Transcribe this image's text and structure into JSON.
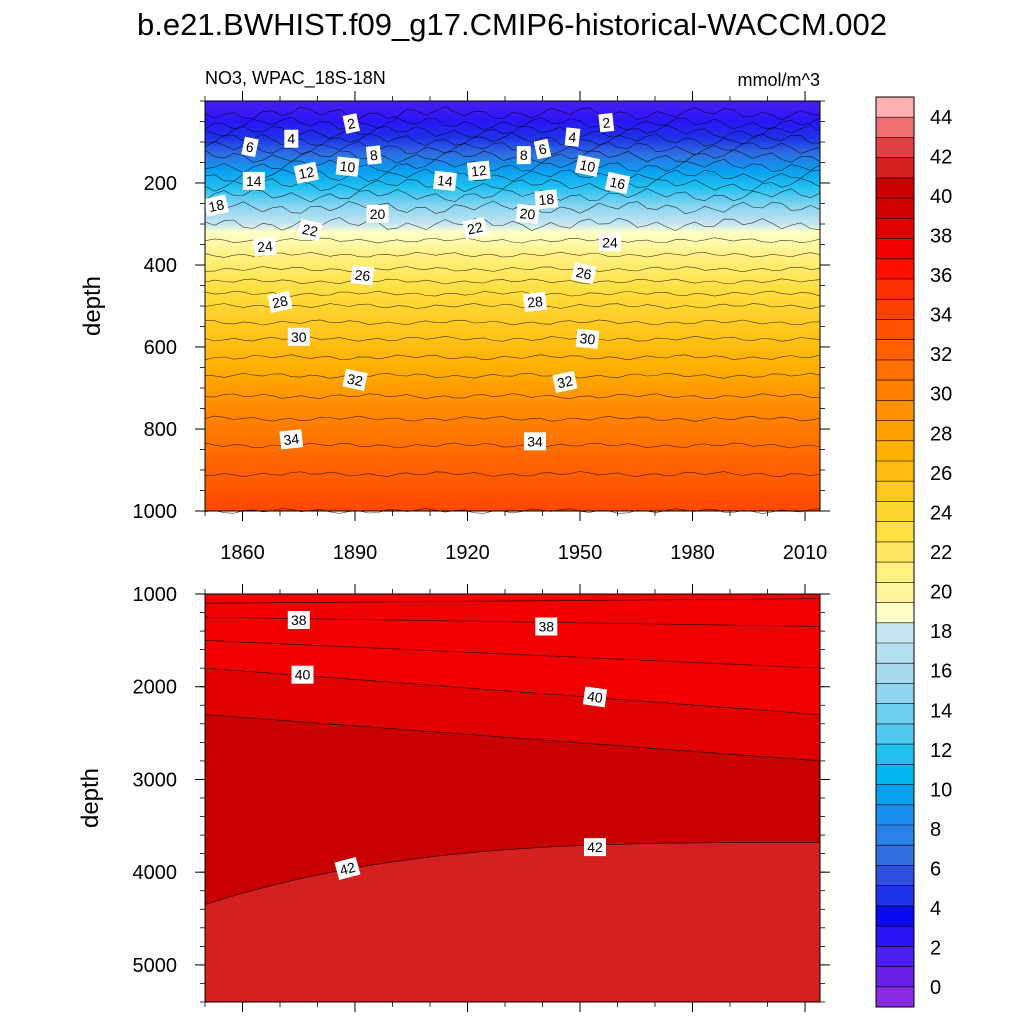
{
  "chart_data": [
    {
      "type": "heatmap",
      "title": "b.e21.BWHIST.f09_g17.CMIP6-historical-WACCM.002",
      "subtitle_left": "NO3, WPAC_18S-18N",
      "subtitle_right": "mmol/m^3",
      "ylabel": "depth",
      "x_range": [
        1850,
        2014
      ],
      "x_ticks": [
        "1860",
        "1890",
        "1920",
        "1950",
        "1980",
        "2010"
      ],
      "y_range": [
        0,
        1000
      ],
      "y_reversed": true,
      "y_ticks": [
        "200",
        "400",
        "600",
        "800",
        "1000"
      ],
      "contour_levels": [
        {
          "depth": 30,
          "value": 0
        },
        {
          "depth": 55,
          "value": 2
        },
        {
          "depth": 75,
          "value": 4
        },
        {
          "depth": 95,
          "value": 6
        },
        {
          "depth": 115,
          "value": 8
        },
        {
          "depth": 135,
          "value": 10
        },
        {
          "depth": 158,
          "value": 12
        },
        {
          "depth": 182,
          "value": 14
        },
        {
          "depth": 205,
          "value": 16
        },
        {
          "depth": 230,
          "value": 18
        },
        {
          "depth": 260,
          "value": 20
        },
        {
          "depth": 300,
          "value": 22
        },
        {
          "depth": 340,
          "value": 23
        },
        {
          "depth": 375,
          "value": 24
        },
        {
          "depth": 410,
          "value": 25
        },
        {
          "depth": 440,
          "value": 26
        },
        {
          "depth": 470,
          "value": 27
        },
        {
          "depth": 500,
          "value": 28
        },
        {
          "depth": 540,
          "value": 29
        },
        {
          "depth": 580,
          "value": 30
        },
        {
          "depth": 625,
          "value": 31
        },
        {
          "depth": 670,
          "value": 32
        },
        {
          "depth": 720,
          "value": 33
        },
        {
          "depth": 775,
          "value": 34
        },
        {
          "depth": 840,
          "value": 35
        },
        {
          "depth": 910,
          "value": 36
        },
        {
          "depth": 1000,
          "value": 37
        }
      ],
      "contour_labels": [
        {
          "year": 1889,
          "depth": 55,
          "text": "2"
        },
        {
          "year": 1957,
          "depth": 53,
          "text": "2"
        },
        {
          "year": 1873,
          "depth": 92,
          "text": "4"
        },
        {
          "year": 1948,
          "depth": 88,
          "text": "4"
        },
        {
          "year": 1862,
          "depth": 112,
          "text": "6"
        },
        {
          "year": 1940,
          "depth": 117,
          "text": "6"
        },
        {
          "year": 1895,
          "depth": 132,
          "text": "8"
        },
        {
          "year": 1935,
          "depth": 132,
          "text": "8"
        },
        {
          "year": 1888,
          "depth": 160,
          "text": "10"
        },
        {
          "year": 1952,
          "depth": 158,
          "text": "10"
        },
        {
          "year": 1877,
          "depth": 175,
          "text": "12"
        },
        {
          "year": 1923,
          "depth": 170,
          "text": "12"
        },
        {
          "year": 1863,
          "depth": 195,
          "text": "14"
        },
        {
          "year": 1914,
          "depth": 195,
          "text": "14"
        },
        {
          "year": 1960,
          "depth": 200,
          "text": "16"
        },
        {
          "year": 1853,
          "depth": 255,
          "text": "18"
        },
        {
          "year": 1941,
          "depth": 240,
          "text": "18"
        },
        {
          "year": 1896,
          "depth": 275,
          "text": "20"
        },
        {
          "year": 1936,
          "depth": 275,
          "text": "20"
        },
        {
          "year": 1878,
          "depth": 315,
          "text": "22"
        },
        {
          "year": 1922,
          "depth": 310,
          "text": "22"
        },
        {
          "year": 1866,
          "depth": 355,
          "text": "24"
        },
        {
          "year": 1958,
          "depth": 345,
          "text": "24"
        },
        {
          "year": 1892,
          "depth": 425,
          "text": "26"
        },
        {
          "year": 1951,
          "depth": 420,
          "text": "26"
        },
        {
          "year": 1870,
          "depth": 490,
          "text": "28"
        },
        {
          "year": 1938,
          "depth": 490,
          "text": "28"
        },
        {
          "year": 1875,
          "depth": 575,
          "text": "30"
        },
        {
          "year": 1952,
          "depth": 580,
          "text": "30"
        },
        {
          "year": 1890,
          "depth": 680,
          "text": "32"
        },
        {
          "year": 1946,
          "depth": 685,
          "text": "32"
        },
        {
          "year": 1873,
          "depth": 825,
          "text": "34"
        },
        {
          "year": 1938,
          "depth": 830,
          "text": "34"
        }
      ]
    },
    {
      "type": "heatmap",
      "ylabel": "depth",
      "x_range": [
        1850,
        2014
      ],
      "y_range": [
        1000,
        5400
      ],
      "y_reversed": true,
      "y_ticks": [
        "1000",
        "2000",
        "3000",
        "4000",
        "5000"
      ],
      "contour_lines": [
        {
          "value": 37,
          "depth_start": 1100,
          "depth_end": 1050
        },
        {
          "value": 38,
          "depth_start": 1250,
          "depth_end": 1350
        },
        {
          "value": 39,
          "depth_start": 1500,
          "depth_end": 1800
        },
        {
          "value": 40,
          "depth_start": 1800,
          "depth_end": 2300
        },
        {
          "value": 41,
          "depth_start": 2300,
          "depth_end": 2800
        },
        {
          "value": 42,
          "depth_start": 4350,
          "depth_end": 3680
        }
      ],
      "contour_labels": [
        {
          "year": 1875,
          "depth": 1280,
          "text": "38"
        },
        {
          "year": 1941,
          "depth": 1350,
          "text": "38"
        },
        {
          "year": 1876,
          "depth": 1870,
          "text": "40"
        },
        {
          "year": 1954,
          "depth": 2110,
          "text": "40"
        },
        {
          "year": 1888,
          "depth": 3960,
          "text": "42"
        },
        {
          "year": 1954,
          "depth": 3730,
          "text": "42"
        }
      ]
    }
  ],
  "colorbar": {
    "ticks": [
      "0",
      "2",
      "4",
      "6",
      "8",
      "10",
      "12",
      "14",
      "16",
      "18",
      "20",
      "22",
      "24",
      "26",
      "28",
      "30",
      "32",
      "34",
      "36",
      "38",
      "40",
      "42",
      "44"
    ],
    "colors": [
      "#8a2be2",
      "#6a1fe8",
      "#4b1ff0",
      "#2a14f5",
      "#0a0af0",
      "#1e32e8",
      "#2e50e0",
      "#2f6fe0",
      "#2a7fe8",
      "#1a8ff0",
      "#0aa0f0",
      "#00b5f0",
      "#20c0f0",
      "#50c8f0",
      "#70d0f0",
      "#90d5f0",
      "#a5daf0",
      "#b5e0f0",
      "#c5e5f0",
      "#ffffc8",
      "#fff5a0",
      "#fff080",
      "#ffe860",
      "#ffe040",
      "#ffd530",
      "#ffc820",
      "#ffbd10",
      "#ffb000",
      "#ffa000",
      "#ff9000",
      "#ff8000",
      "#ff7000",
      "#ff6000",
      "#ff5000",
      "#ff4000",
      "#ff3000",
      "#ff1000",
      "#f00000",
      "#e00000",
      "#d20000",
      "#c80000",
      "#d42020",
      "#e04040",
      "#ee7070",
      "#ffb0b0"
    ]
  }
}
